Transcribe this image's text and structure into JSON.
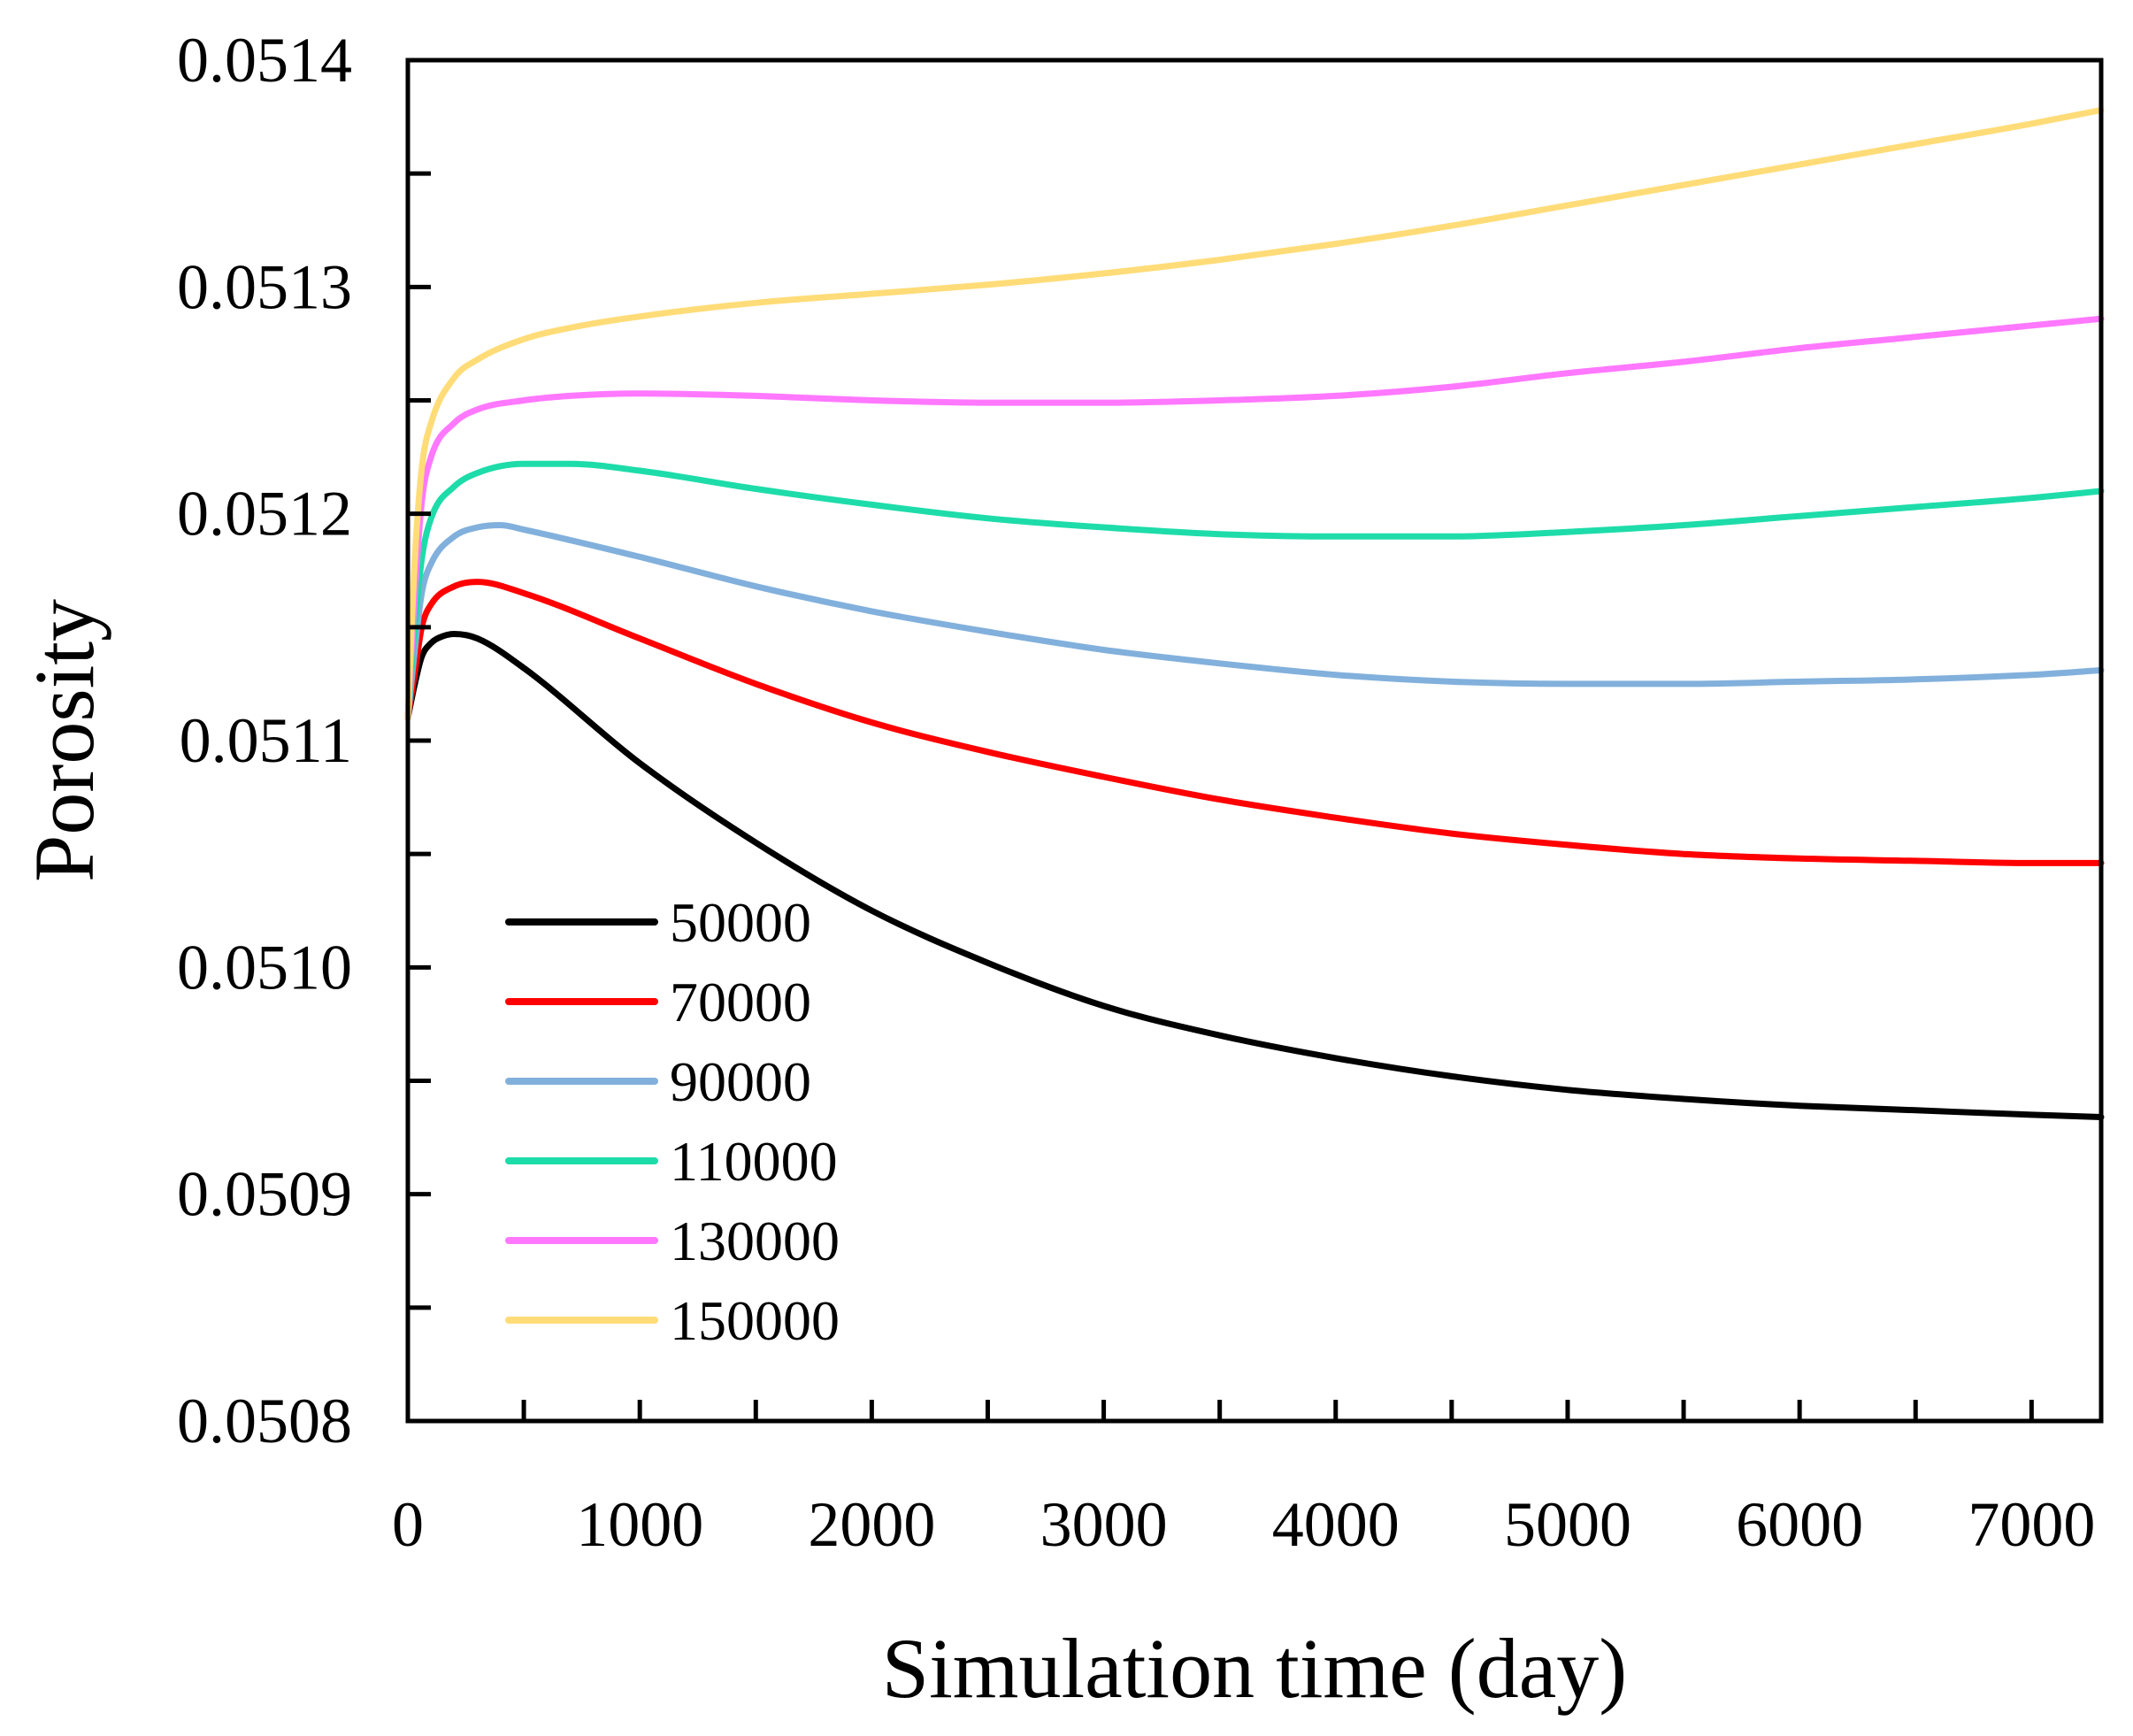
{
  "chart_data": {
    "type": "line",
    "title": "",
    "xlabel": "Simulation time (day)",
    "ylabel": "Porosity",
    "xlim": [
      0,
      7300
    ],
    "ylim": [
      0.0508,
      0.0514
    ],
    "x_ticks": [
      0,
      1000,
      2000,
      3000,
      4000,
      5000,
      6000,
      7000
    ],
    "x_tick_labels": [
      "0",
      "1000",
      "2000",
      "3000",
      "4000",
      "5000",
      "6000",
      "7000"
    ],
    "y_ticks": [
      0.0508,
      0.0509,
      0.051,
      0.0511,
      0.0512,
      0.0513,
      0.0514
    ],
    "y_tick_labels": [
      "0.0508",
      "0.0509",
      "0.0510",
      "0.0511",
      "0.0512",
      "0.0513",
      "0.0514"
    ],
    "grid": false,
    "legend_position": "lower-left",
    "series": [
      {
        "name": "50000",
        "color": "#000000",
        "x": [
          0,
          30,
          60,
          100,
          150,
          200,
          300,
          500,
          1000,
          1500,
          2000,
          2500,
          3000,
          3500,
          4000,
          4500,
          5000,
          5500,
          6000,
          6500,
          7000,
          7300
        ],
        "values": [
          0.05111,
          0.051125,
          0.051137,
          0.051143,
          0.051146,
          0.051147,
          0.051145,
          0.051132,
          0.05109,
          0.051055,
          0.051025,
          0.051002,
          0.050983,
          0.05097,
          0.05096,
          0.050952,
          0.050946,
          0.050942,
          0.050939,
          0.050937,
          0.050935,
          0.050934
        ]
      },
      {
        "name": "70000",
        "color": "#ff0000",
        "x": [
          0,
          30,
          60,
          100,
          200,
          300,
          500,
          1000,
          1500,
          2000,
          2500,
          3000,
          3500,
          4000,
          4500,
          5000,
          5500,
          6000,
          6500,
          7000,
          7300
        ],
        "values": [
          0.05111,
          0.05113,
          0.05115,
          0.05116,
          0.051168,
          0.05117,
          0.051165,
          0.051145,
          0.051125,
          0.051108,
          0.051095,
          0.051084,
          0.051074,
          0.051066,
          0.051059,
          0.051054,
          0.05105,
          0.051048,
          0.051047,
          0.051046,
          0.051046
        ]
      },
      {
        "name": "90000",
        "color": "#82b0dc",
        "x": [
          0,
          30,
          60,
          100,
          200,
          300,
          400,
          500,
          1000,
          1500,
          2000,
          2500,
          3000,
          3500,
          4000,
          4500,
          5000,
          5500,
          6000,
          6500,
          7000,
          7300
        ],
        "values": [
          0.05111,
          0.05114,
          0.051165,
          0.051178,
          0.05119,
          0.051194,
          0.051195,
          0.051193,
          0.051181,
          0.051168,
          0.051157,
          0.051148,
          0.05114,
          0.051134,
          0.051129,
          0.051126,
          0.051125,
          0.051125,
          0.051126,
          0.051127,
          0.051129,
          0.051131
        ]
      },
      {
        "name": "110000",
        "color": "#1edcaa",
        "x": [
          0,
          30,
          60,
          100,
          200,
          300,
          500,
          700,
          1000,
          1500,
          2000,
          2500,
          3000,
          3500,
          4000,
          4500,
          5000,
          5500,
          6000,
          6500,
          7000,
          7300
        ],
        "values": [
          0.05111,
          0.05115,
          0.05118,
          0.051198,
          0.051212,
          0.051218,
          0.051222,
          0.051222,
          0.051219,
          0.051211,
          0.051204,
          0.051198,
          0.051194,
          0.051191,
          0.05119,
          0.05119,
          0.051192,
          0.051195,
          0.051199,
          0.051203,
          0.051207,
          0.05121
        ]
      },
      {
        "name": "130000",
        "color": "#ff78ff",
        "x": [
          0,
          30,
          60,
          100,
          200,
          300,
          500,
          700,
          1000,
          1500,
          2000,
          2500,
          3000,
          3500,
          4000,
          4500,
          5000,
          5500,
          6000,
          6500,
          7000,
          7300
        ],
        "values": [
          0.05111,
          0.051165,
          0.051205,
          0.051225,
          0.05124,
          0.051246,
          0.05125,
          0.051252,
          0.051253,
          0.051252,
          0.05125,
          0.051249,
          0.051249,
          0.05125,
          0.051252,
          0.051256,
          0.051262,
          0.051267,
          0.051273,
          0.051278,
          0.051283,
          0.051286
        ]
      },
      {
        "name": "150000",
        "color": "#ffdc78",
        "x": [
          0,
          30,
          60,
          100,
          200,
          300,
          500,
          700,
          1000,
          1500,
          2000,
          2500,
          3000,
          3500,
          4000,
          4500,
          5000,
          5500,
          6000,
          6500,
          7000,
          7300
        ],
        "values": [
          0.05111,
          0.05118,
          0.05122,
          0.05124,
          0.05126,
          0.051268,
          0.051277,
          0.051282,
          0.051287,
          0.051293,
          0.051297,
          0.051301,
          0.051306,
          0.051312,
          0.051319,
          0.051327,
          0.051336,
          0.051345,
          0.051354,
          0.051363,
          0.051372,
          0.051378
        ]
      }
    ]
  }
}
